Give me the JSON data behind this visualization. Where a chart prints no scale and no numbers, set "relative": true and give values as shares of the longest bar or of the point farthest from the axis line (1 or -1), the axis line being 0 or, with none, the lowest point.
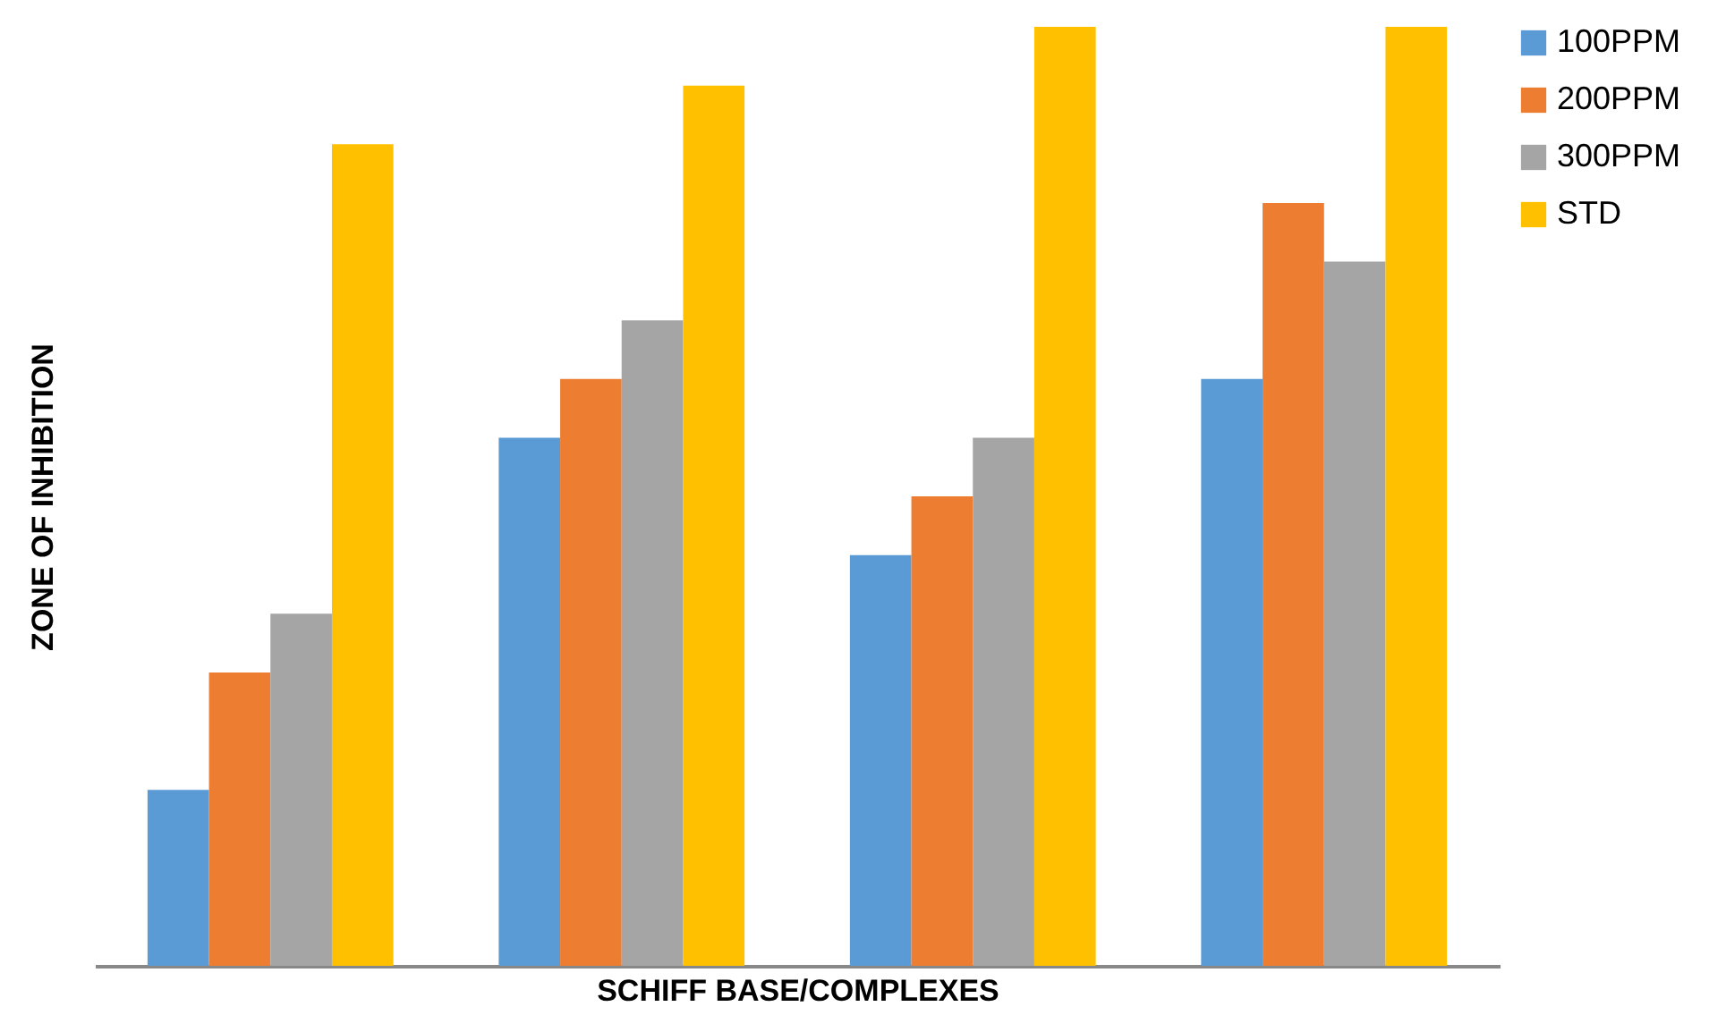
{
  "chart_data": {
    "type": "bar",
    "relative": true,
    "xlabel": "SCHIFF BASE/COMPLEXES",
    "ylabel": "ZONE OF INHIBITION",
    "categories": [
      null,
      null,
      null,
      null
    ],
    "legend": "right",
    "grid": false,
    "series": [
      {
        "name": "100PPM",
        "color": "#5b9bd5",
        "values": [
          0.1875,
          0.5625,
          0.4375,
          0.625
        ]
      },
      {
        "name": "200PPM",
        "color": "#ed7d31",
        "values": [
          0.3125,
          0.625,
          0.5,
          0.8125
        ]
      },
      {
        "name": "300PPM",
        "color": "#a5a5a5",
        "values": [
          0.375,
          0.6875,
          0.5625,
          0.75
        ]
      },
      {
        "name": "STD",
        "color": "#ffc000",
        "values": [
          0.875,
          0.9375,
          1,
          1
        ]
      }
    ]
  }
}
